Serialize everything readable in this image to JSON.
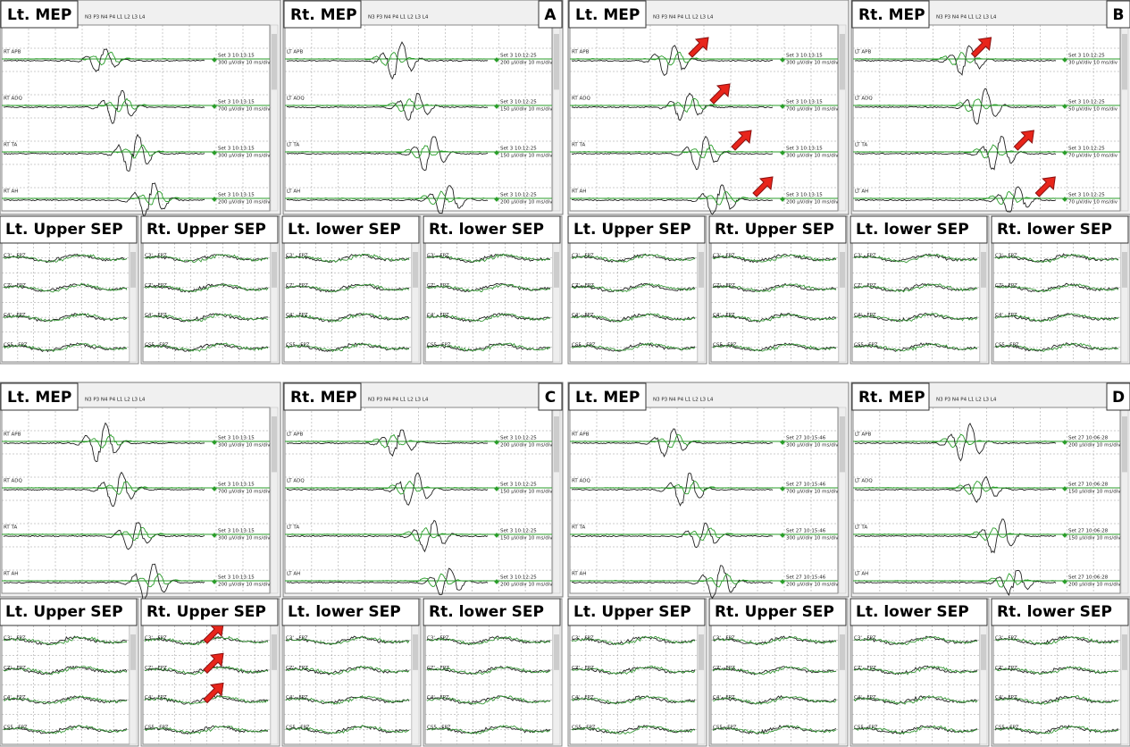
{
  "panels": [
    {
      "letter": "A",
      "lt_mep": {
        "title": "Lt. MEP",
        "toolbar": "N3 P3 N4 P4 L1 L2 L3 L4",
        "channels": [
          {
            "label": "RT APB",
            "set": "Set 3 10:13:15",
            "scale": "300 µV/div 10 ms/div"
          },
          {
            "label": "RT ADQ",
            "set": "Set 3 10:13:15",
            "scale": "700 µV/div 10 ms/div"
          },
          {
            "label": "RT TA",
            "set": "Set 3 10:13:15",
            "scale": "300 µV/div 10 ms/div"
          },
          {
            "label": "RT AH",
            "set": "Set 3 10:13:15",
            "scale": "200 µV/div 10 ms/div"
          }
        ]
      },
      "rt_mep": {
        "title": "Rt. MEP",
        "toolbar": "N3 P3 N4 P4 L1 L2 L3 L4",
        "channels": [
          {
            "label": "LT APB",
            "set": "Set 3 10:12:25",
            "scale": "200 µV/div 10 ms/div"
          },
          {
            "label": "LT ADQ",
            "set": "Set 3 10:12:25",
            "scale": "150 µV/div 10 ms/div"
          },
          {
            "label": "LT TA",
            "set": "Set 3 10:12:25",
            "scale": "150 µV/div 10 ms/div"
          },
          {
            "label": "LT AH",
            "set": "Set 3 10:12:25",
            "scale": "200 µV/div 10 ms/div"
          }
        ]
      },
      "seps": [
        {
          "title": "Lt. Upper SEP",
          "channels": [
            "C3' - FPZ",
            "CZ' - FPZ",
            "C4' - FPZ",
            "CS5 - FPZ"
          ]
        },
        {
          "title": "Rt. Upper SEP",
          "channels": [
            "C3' - FPZ",
            "CZ' - FPZ",
            "C4' - FPZ",
            "CS5 - FPZ"
          ]
        },
        {
          "title": "Lt. lower SEP",
          "channels": [
            "C3' - FPZ",
            "CZ' - FPZ",
            "C4' - FPZ",
            "CS5 - FPZ"
          ]
        },
        {
          "title": "Rt. lower SEP",
          "channels": [
            "C3' - FPZ",
            "CZ' - FPZ",
            "C4' - FPZ",
            "CS5 - FPZ"
          ]
        }
      ]
    },
    {
      "letter": "B",
      "lt_mep": {
        "title": "Lt. MEP",
        "toolbar": "N3 P3 N4 P4 L1 L2 L3 L4",
        "channels": [
          {
            "label": "RT APB",
            "set": "Set 3 10:13:15",
            "scale": "300 µV/div 10 ms/div"
          },
          {
            "label": "RT ADQ",
            "set": "Set 3 10:13:15",
            "scale": "700 µV/div 10 ms/div"
          },
          {
            "label": "RT TA",
            "set": "Set 3 10:13:15",
            "scale": "300 µV/div 10 ms/div"
          },
          {
            "label": "RT AH",
            "set": "Set 3 10:13:15",
            "scale": "200 µV/div 10 ms/div"
          }
        ]
      },
      "rt_mep": {
        "title": "Rt. MEP",
        "toolbar": "N3 P3 N4 P4 L1 L2 L3 L4",
        "channels": [
          {
            "label": "LT APB",
            "set": "Set 3 10:12:25",
            "scale": "30 µV/div 10 ms/div"
          },
          {
            "label": "LT ADQ",
            "set": "Set 3 10:12:25",
            "scale": "50 µV/div 10 ms/div"
          },
          {
            "label": "LT TA",
            "set": "Set 3 10:12:25",
            "scale": "70 µV/div 10 ms/div"
          },
          {
            "label": "LT AH",
            "set": "Set 3 10:12:25",
            "scale": "70 µV/div 10 ms/div"
          }
        ]
      },
      "seps": [
        {
          "title": "Lt. Upper SEP",
          "channels": [
            "C3' - FPZ",
            "CZ' - FPZ",
            "C4' - FPZ",
            "CS5 - FPZ"
          ]
        },
        {
          "title": "Rt. Upper SEP",
          "channels": [
            "C3' - FPZ",
            "CZ' - FPZ",
            "C4' - FPZ",
            "CS5 - FPZ"
          ]
        },
        {
          "title": "Lt. lower SEP",
          "channels": [
            "C3' - FPZ",
            "CZ' - FPZ",
            "C4' - FPZ",
            "CS5 - FPZ"
          ]
        },
        {
          "title": "Rt. lower SEP",
          "channels": [
            "C3' - FPZ",
            "CZ' - FPZ",
            "C4' - FPZ",
            "CS5 - FPZ"
          ]
        }
      ]
    },
    {
      "letter": "C",
      "lt_mep": {
        "title": "Lt. MEP",
        "toolbar": "N3 P3 N4 P4 L1 L2 L3 L4",
        "channels": [
          {
            "label": "RT APB",
            "set": "Set 3 10:13:15",
            "scale": "300 µV/div 10 ms/div"
          },
          {
            "label": "RT ADQ",
            "set": "Set 3 10:13:15",
            "scale": "700 µV/div 10 ms/div"
          },
          {
            "label": "RT TA",
            "set": "Set 3 10:13:15",
            "scale": "300 µV/div 10 ms/div"
          },
          {
            "label": "RT AH",
            "set": "Set 3 10:13:15",
            "scale": "200 µV/div 10 ms/div"
          }
        ]
      },
      "rt_mep": {
        "title": "Rt. MEP",
        "toolbar": "N3 P3 N4 P4 L1 L2 L3 L4",
        "channels": [
          {
            "label": "LT APB",
            "set": "Set 3 10:12:25",
            "scale": "200 µV/div 10 ms/div"
          },
          {
            "label": "LT ADQ",
            "set": "Set 3 10:12:25",
            "scale": "150 µV/div 10 ms/div"
          },
          {
            "label": "LT TA",
            "set": "Set 3 10:12:25",
            "scale": "150 µV/div 10 ms/div"
          },
          {
            "label": "LT AH",
            "set": "Set 3 10:12:25",
            "scale": "200 µV/div 10 ms/div"
          }
        ]
      },
      "seps": [
        {
          "title": "Lt. Upper SEP",
          "channels": [
            "C3' - FPZ",
            "CZ' - FPZ",
            "C4' - FPZ",
            "CS5 - FPZ"
          ]
        },
        {
          "title": "Rt. Upper SEP",
          "channels": [
            "C3' - FPZ",
            "CZ' - FPZ",
            "C4' - FPZ",
            "CS5 - FPZ"
          ]
        },
        {
          "title": "Lt. lower SEP",
          "channels": [
            "C3' - FPZ",
            "CZ' - FPZ",
            "C4' - FPZ",
            "CS5 - FPZ"
          ]
        },
        {
          "title": "Rt. lower SEP",
          "channels": [
            "C3' - FPZ",
            "CZ' - FPZ",
            "C4' - FPZ",
            "CS5 - FPZ"
          ]
        }
      ]
    },
    {
      "letter": "D",
      "lt_mep": {
        "title": "Lt. MEP",
        "toolbar": "N3 P3 N4 P4 L1 L2 L3 L4",
        "channels": [
          {
            "label": "RT APB",
            "set": "Set 27 10:15:46",
            "scale": "300 µV/div 10 ms/div"
          },
          {
            "label": "RT ADQ",
            "set": "Set 27 10:15:46",
            "scale": "700 µV/div 10 ms/div"
          },
          {
            "label": "RT TA",
            "set": "Set 27 10:15:46",
            "scale": "300 µV/div 10 ms/div"
          },
          {
            "label": "RT AH",
            "set": "Set 27 10:15:46",
            "scale": "200 µV/div 10 ms/div"
          }
        ]
      },
      "rt_mep": {
        "title": "Rt. MEP",
        "toolbar": "N3 P3 N4 P4 L1 L2 L3 L4",
        "channels": [
          {
            "label": "LT APB",
            "set": "Set 27 10:06:28",
            "scale": "200 µV/div 10 ms/div"
          },
          {
            "label": "LT ADQ",
            "set": "Set 27 10:06:28",
            "scale": "150 µV/div 10 ms/div"
          },
          {
            "label": "LT TA",
            "set": "Set 27 10:06:28",
            "scale": "150 µV/div 10 ms/div"
          },
          {
            "label": "LT AH",
            "set": "Set 27 10:06:28",
            "scale": "200 µV/div 10 ms/div"
          }
        ]
      },
      "seps": [
        {
          "title": "Lt. Upper SEP",
          "channels": [
            "C3' - FPZ",
            "CZ' - FPZ",
            "C4' - FPZ",
            "CS5 - FPZ"
          ]
        },
        {
          "title": "Rt. Upper SEP",
          "channels": [
            "C3' - FPZ",
            "CZ' - FPZ",
            "C4' - FPZ",
            "CS5 - FPZ"
          ]
        },
        {
          "title": "Lt. lower SEP",
          "channels": [
            "C3' - FPZ",
            "CZ' - FPZ",
            "C4' - FPZ",
            "CS5 - FPZ"
          ]
        },
        {
          "title": "Rt. lower SEP",
          "channels": [
            "C3' - FPZ",
            "CZ' - FPZ",
            "C4' - FPZ",
            "CS5 - FPZ"
          ]
        }
      ]
    }
  ]
}
